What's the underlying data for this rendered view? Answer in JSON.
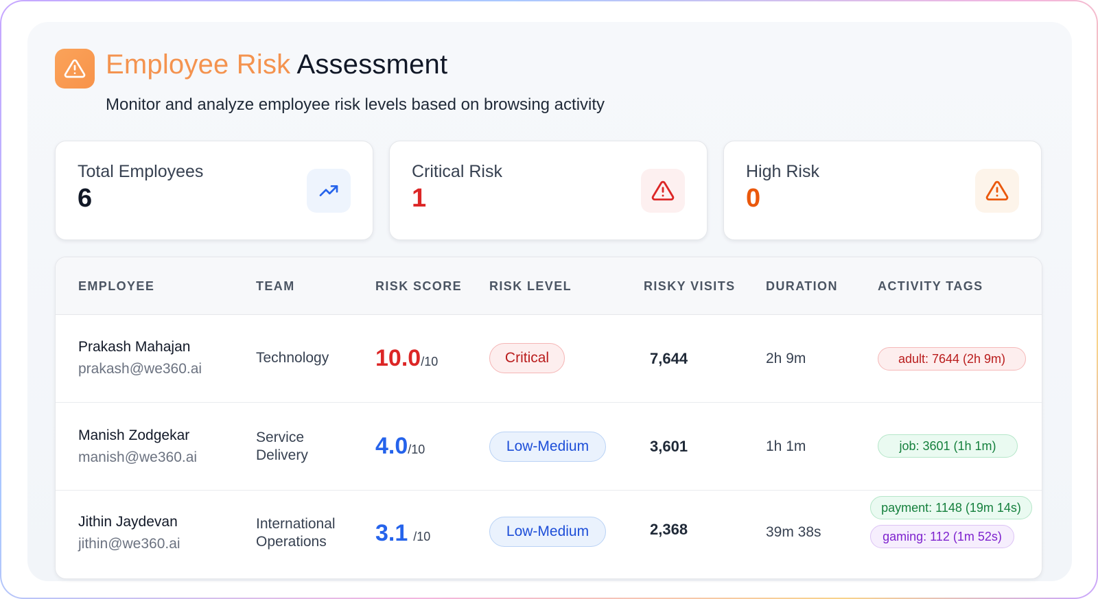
{
  "header": {
    "title_accent": "Employee Risk",
    "title_rest": "Assessment",
    "subtitle": "Monitor and analyze employee risk levels based on browsing activity",
    "icon": "warning-triangle-icon"
  },
  "stats": [
    {
      "label": "Total Employees",
      "value": "6",
      "icon": "trending-up-icon",
      "color": "#111827",
      "icon_bg": "#eef4fd",
      "icon_color": "#2563eb"
    },
    {
      "label": "Critical Risk",
      "value": "1",
      "icon": "warning-triangle-icon",
      "color": "#dc2626",
      "icon_bg": "#fdf0f0",
      "icon_color": "#dc2626"
    },
    {
      "label": "High Risk",
      "value": "0",
      "icon": "warning-triangle-icon",
      "color": "#ea580c",
      "icon_bg": "#fdf4ea",
      "icon_color": "#ea580c"
    }
  ],
  "table": {
    "headers": [
      "EMPLOYEE",
      "TEAM",
      "RISK SCORE",
      "RISK LEVEL",
      "RISKY VISITS",
      "DURATION",
      "ACTIVITY TAGS"
    ],
    "rows": [
      {
        "name": "Prakash Mahajan",
        "email": "prakash@we360.ai",
        "team": [
          "Technology"
        ],
        "score": "10.0",
        "score_den": "/10",
        "score_color": "#dc2626",
        "level": "Critical",
        "level_style": "critical",
        "visits": "7,644",
        "duration": "2h 9m",
        "tags": [
          {
            "text": "adult: 7644 (2h 9m)",
            "style": "red"
          }
        ]
      },
      {
        "name": "Manish Zodgekar",
        "email": "manish@we360.ai",
        "team": [
          "Service",
          "Delivery"
        ],
        "score": "4.0",
        "score_den": "/10",
        "score_color": "#2563eb",
        "level": "Low-Medium",
        "level_style": "lowmed",
        "visits": "3,601",
        "duration": "1h 1m",
        "tags": [
          {
            "text": "job: 3601 (1h 1m)",
            "style": "green"
          }
        ]
      },
      {
        "name": "Jithin Jaydevan",
        "email": "jithin@we360.ai",
        "team": [
          "International",
          "Operations"
        ],
        "score": "3.1",
        "score_den": "/10",
        "score_color": "#2563eb",
        "level": "Low-Medium",
        "level_style": "lowmed",
        "visits": "2,368",
        "duration": "39m 38s",
        "tags": [
          {
            "text": "payment: 1148 (19m 14s)",
            "style": "green"
          },
          {
            "text": "gaming: 112 (1m 52s)",
            "style": "purple"
          }
        ]
      }
    ]
  }
}
